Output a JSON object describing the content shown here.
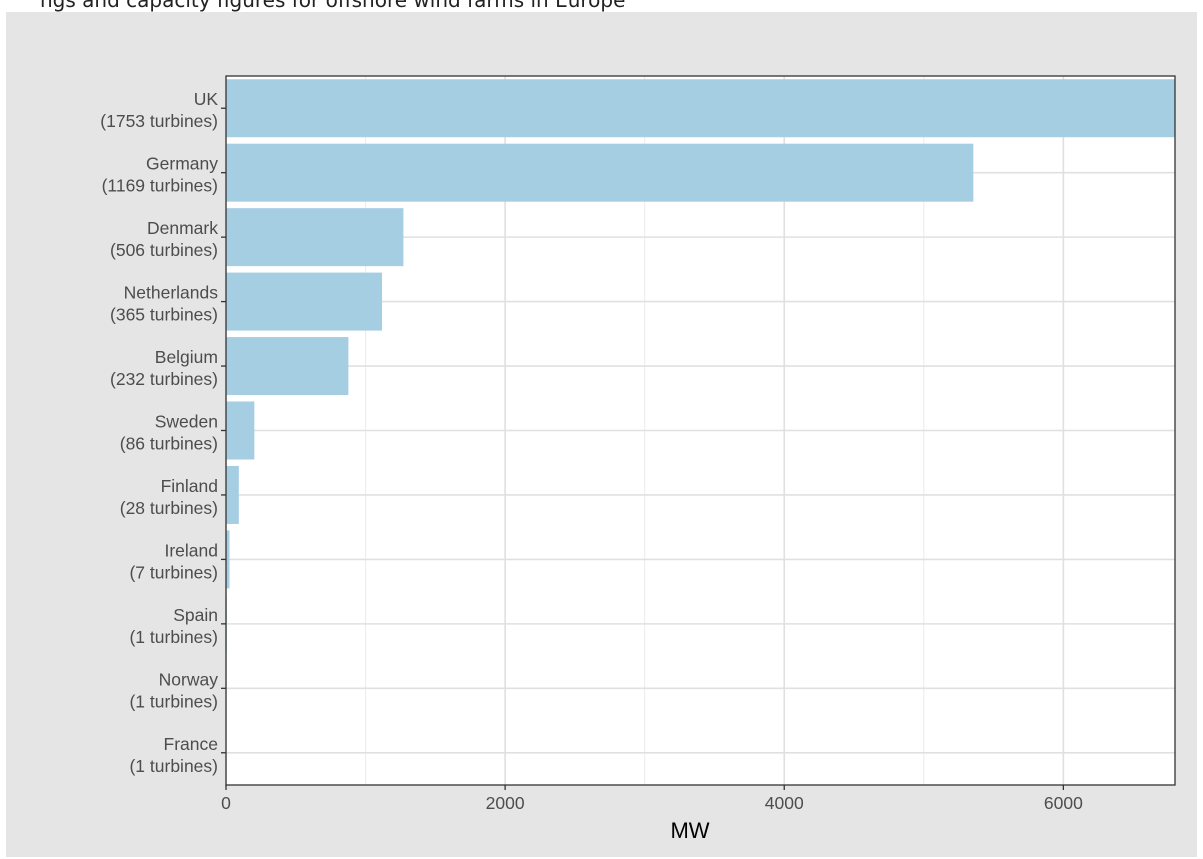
{
  "header_text": "ngs and capacity figures for offshore wind farms in Europe",
  "chart_data": {
    "type": "bar",
    "orientation": "horizontal",
    "title": "",
    "xlabel": "MW",
    "ylabel": "",
    "xlim": [
      0,
      6800
    ],
    "x_ticks": [
      0,
      2000,
      4000,
      6000
    ],
    "grid": true,
    "bar_color": "#a6cee3",
    "categories": [
      {
        "label": "UK",
        "sub": "(1753 turbines)"
      },
      {
        "label": "Germany",
        "sub": "(1169 turbines)"
      },
      {
        "label": "Denmark",
        "sub": "(506 turbines)"
      },
      {
        "label": "Netherlands",
        "sub": "(365 turbines)"
      },
      {
        "label": "Belgium",
        "sub": "(232 turbines)"
      },
      {
        "label": "Sweden",
        "sub": "(86 turbines)"
      },
      {
        "label": "Finland",
        "sub": "(28 turbines)"
      },
      {
        "label": "Ireland",
        "sub": "(7 turbines)"
      },
      {
        "label": "Spain",
        "sub": "(1 turbines)"
      },
      {
        "label": "Norway",
        "sub": "(1 turbines)"
      },
      {
        "label": "France",
        "sub": "(1 turbines)"
      }
    ],
    "values": [
      6836,
      5355,
      1271,
      1118,
      877,
      203,
      92,
      25,
      5,
      2.3,
      2
    ]
  }
}
